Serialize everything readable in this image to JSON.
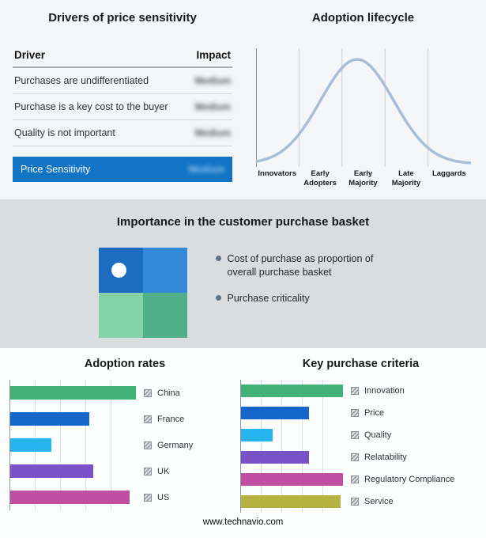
{
  "drivers_panel": {
    "title": "Drivers of price sensitivity",
    "columns": [
      "Driver",
      "Impact"
    ],
    "rows": [
      {
        "driver": "Purchases are undifferentiated",
        "impact": "Medium"
      },
      {
        "driver": "Purchase is a key cost to the buyer",
        "impact": "Medium"
      },
      {
        "driver": "Quality is not important",
        "impact": "Medium"
      }
    ],
    "highlight": {
      "label": "Price Sensitivity",
      "impact": "Medium"
    },
    "highlight_color": "#1174c5"
  },
  "basket_panel": {
    "title": "Importance in the customer purchase basket",
    "bullets": [
      "Cost of purchase as proportion of overall purchase basket",
      "Purchase criticality"
    ],
    "quadrant_colors": [
      "#1c6dc1",
      "#3488d8",
      "#85d2a8",
      "#4fb089"
    ]
  },
  "chart_data": [
    {
      "type": "line",
      "title": "Adoption lifecycle",
      "categories": [
        "Innovators",
        "Early Adopters",
        "Early Majority",
        "Late Majority",
        "Laggards"
      ],
      "shape": "bell-curve",
      "curve_color": "#a9bed6",
      "grid": true
    },
    {
      "type": "bar",
      "title": "Adoption rates",
      "orientation": "horizontal",
      "categories": [
        "China",
        "France",
        "Germany",
        "UK",
        "US"
      ],
      "values": [
        100,
        63,
        33,
        66,
        95
      ],
      "colors": [
        "#42b177",
        "#1467c8",
        "#27b5f2",
        "#7a52c7",
        "#c04fa2"
      ],
      "xlim": [
        0,
        100
      ],
      "grid": true,
      "legend_position": "right"
    },
    {
      "type": "bar",
      "title": "Key purchase criteria",
      "orientation": "horizontal",
      "categories": [
        "Innovation",
        "Price",
        "Quality",
        "Relatability",
        "Regulatory Compliance",
        "Service"
      ],
      "values": [
        100,
        67,
        31,
        67,
        100,
        98
      ],
      "colors": [
        "#42b177",
        "#1467c8",
        "#27b5f2",
        "#7a52c7",
        "#c04fa2",
        "#b7b23f"
      ],
      "xlim": [
        0,
        100
      ],
      "grid": true,
      "legend_position": "right"
    }
  ],
  "footer": {
    "url": "www.technavio.com"
  }
}
